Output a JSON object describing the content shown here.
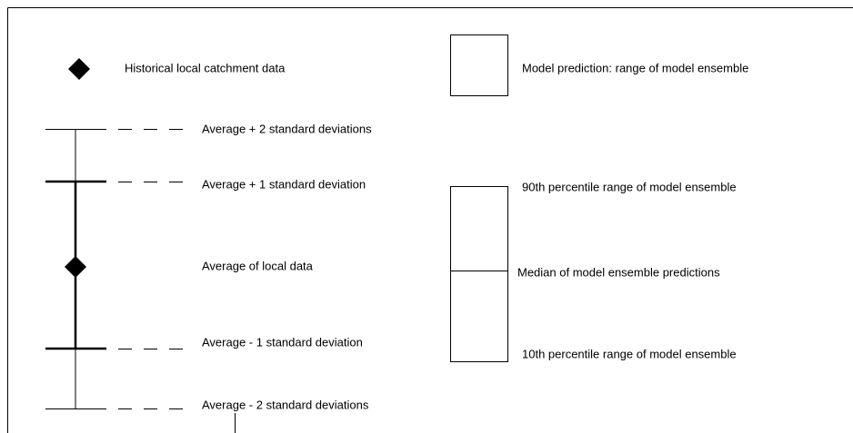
{
  "legend": {
    "historical": "Historical local catchment data",
    "model_range": "Model prediction: range of model ensemble",
    "plus2": "Average + 2 standard deviations",
    "plus1": "Average + 1 standard deviation",
    "average": "Average of local data",
    "minus1": "Average - 1 standard deviation",
    "minus2": "Average - 2 standard deviations",
    "p90": "90th percentile range of model ensemble",
    "median": "Median of model ensemble predictions",
    "p10": "10th percentile range of model ensemble"
  }
}
